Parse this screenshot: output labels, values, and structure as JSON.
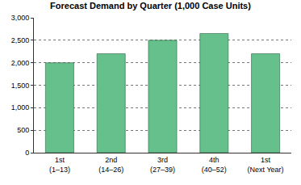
{
  "chart_data": {
    "type": "bar",
    "title": "Forecast Demand by Quarter (1,000 Case Units)",
    "categories": [
      "1st (1–13)",
      "2nd (14–26)",
      "3rd (27–39)",
      "4th (40–52)",
      "1st (Next Year)"
    ],
    "values": [
      2000,
      2200,
      2500,
      2650,
      2200
    ],
    "color": "#66c08c",
    "ylim": [
      0,
      3000
    ],
    "yticks": [
      0,
      500,
      {
        "value": 1000,
        "label": "1,000"
      },
      {
        "value": 1500,
        "label": "1,500"
      },
      {
        "value": 2000,
        "label": "2,000"
      },
      {
        "value": 2500,
        "label": "2,500"
      },
      {
        "value": 3000,
        "label": "3,000"
      }
    ],
    "grid": true
  }
}
